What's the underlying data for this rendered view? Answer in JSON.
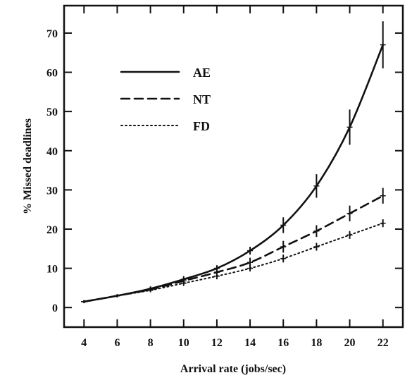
{
  "chart_data": {
    "type": "line",
    "xlabel": "Arrival rate (jobs/sec)",
    "ylabel": "% Missed deadlines",
    "x": [
      4,
      6,
      8,
      10,
      12,
      14,
      16,
      18,
      20,
      22
    ],
    "x_ticks": [
      "4",
      "6",
      "8",
      "10",
      "12",
      "14",
      "16",
      "18",
      "20",
      "22"
    ],
    "y_ticks": [
      "0",
      "10",
      "20",
      "30",
      "40",
      "50",
      "60",
      "70"
    ],
    "xlim": [
      2.8,
      23.2
    ],
    "ylim": [
      -5,
      77
    ],
    "grid": false,
    "legend_position": "top-left",
    "series": [
      {
        "name": "AE",
        "style": "solid",
        "values": [
          1.5,
          3,
          4.8,
          7.2,
          10,
          14.5,
          21,
          31,
          46,
          67
        ],
        "error": [
          0.4,
          0.4,
          0.6,
          0.8,
          0.8,
          1,
          2,
          3,
          4.5,
          6
        ]
      },
      {
        "name": "NT",
        "style": "dashed",
        "values": [
          1.5,
          3,
          4.6,
          6.8,
          9,
          11.5,
          15.5,
          19.5,
          24,
          28.5
        ],
        "error": [
          0.3,
          0.4,
          0.5,
          0.8,
          1.2,
          1.2,
          1.5,
          1.5,
          2,
          2
        ]
      },
      {
        "name": "FD",
        "style": "dotted",
        "values": [
          1.5,
          3,
          4.4,
          6.2,
          8,
          10,
          12.5,
          15.5,
          18.5,
          21.5
        ],
        "error": [
          0.3,
          0.3,
          0.5,
          0.7,
          0.8,
          0.8,
          1,
          1,
          1,
          1
        ]
      }
    ],
    "colors": {
      "line": "#111111",
      "axis": "#111111",
      "background": "#ffffff"
    }
  }
}
